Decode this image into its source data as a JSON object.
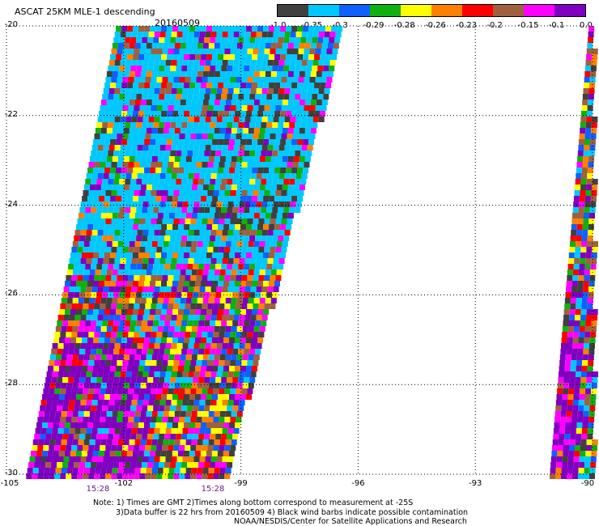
{
  "title": "ASCAT 25KM MLE-1 descending",
  "date": "20160509",
  "colorbar": {
    "colors": [
      "#404040",
      "#00c8ff",
      "#1060ff",
      "#10b010",
      "#ffff00",
      "#ff8000",
      "#ff0000",
      "#a06040",
      "#ff00ff",
      "#8000c0"
    ],
    "labels": [
      "-1.0",
      "-0.35",
      "-0.3",
      "-0.29",
      "-0.28",
      "-0.26",
      "-0.23",
      "-0.2",
      "-0.15",
      "-0.1",
      "0.0"
    ]
  },
  "axes": {
    "y_labels": [
      "-20",
      "-22",
      "-24",
      "-26",
      "-28",
      "-30"
    ],
    "x_labels": [
      "-105",
      "-102",
      "-99",
      "-96",
      "-93",
      "-90"
    ]
  },
  "times": [
    "15:28",
    "15:28"
  ],
  "notes": [
    "Note: 1) Times are GMT 2)Times along bottom correspond to measurement at -25S",
    "3)Data buffer is 22 hrs from 20160509 4) Black wind barbs indicate possible contamination",
    "NOAA/NESDIS/Center for Satellite Applications and Research"
  ],
  "map_data": {
    "lon_range": [
      -105,
      -90
    ],
    "lat_range": [
      -30,
      -20
    ],
    "swaths": [
      {
        "name": "main",
        "lon_west_at_top": -102.2,
        "lon_east_at_top": -96.4,
        "lon_west_at_bottom": -104.5,
        "lon_east_at_bottom": -99.4
      },
      {
        "name": "right",
        "lon_west_at_top": -90.1,
        "lon_east_at_top": -90.0,
        "lon_west_at_bottom": -91.1,
        "lon_east_at_bottom": -90.0
      }
    ]
  }
}
